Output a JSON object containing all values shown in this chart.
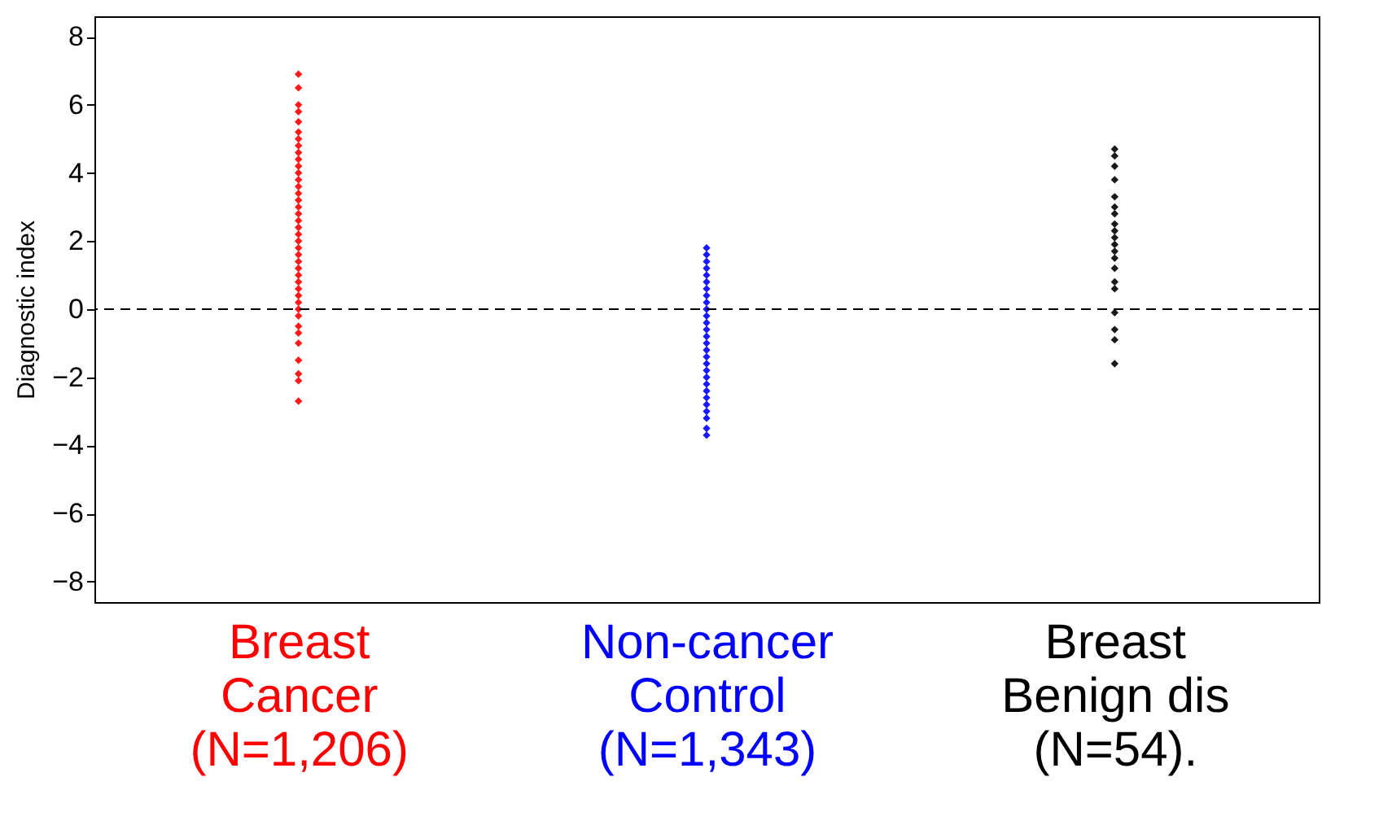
{
  "chart_data": {
    "type": "scatter",
    "ylabel": "Diagnostic index",
    "categories": [
      "Breast\nCancer\n(N=1,206)",
      "Non-cancer\nControl\n(N=1,343)",
      "Breast\nBenign dis\n(N=54)."
    ],
    "series": [
      {
        "color": "#ff0000",
        "x": [
          "Breast\nCancer\n(N=1,206)",
          "Breast\nCancer\n(N=1,206)",
          "Breast\nCancer\n(N=1,206)",
          "Breast\nCancer\n(N=1,206)",
          "Breast\nCancer\n(N=1,206)",
          "Breast\nCancer\n(N=1,206)",
          "Breast\nCancer\n(N=1,206)",
          "Breast\nCancer\n(N=1,206)",
          "Breast\nCancer\n(N=1,206)",
          "Breast\nCancer\n(N=1,206)",
          "Breast\nCancer\n(N=1,206)",
          "Breast\nCancer\n(N=1,206)",
          "Breast\nCancer\n(N=1,206)",
          "Breast\nCancer\n(N=1,206)",
          "Breast\nCancer\n(N=1,206)",
          "Breast\nCancer\n(N=1,206)",
          "Breast\nCancer\n(N=1,206)",
          "Breast\nCancer\n(N=1,206)",
          "Breast\nCancer\n(N=1,206)",
          "Breast\nCancer\n(N=1,206)",
          "Breast\nCancer\n(N=1,206)",
          "Breast\nCancer\n(N=1,206)",
          "Breast\nCancer\n(N=1,206)",
          "Breast\nCancer\n(N=1,206)",
          "Breast\nCancer\n(N=1,206)",
          "Breast\nCancer\n(N=1,206)",
          "Breast\nCancer\n(N=1,206)",
          "Breast\nCancer\n(N=1,206)",
          "Breast\nCancer\n(N=1,206)",
          "Breast\nCancer\n(N=1,206)",
          "Breast\nCancer\n(N=1,206)",
          "Breast\nCancer\n(N=1,206)",
          "Breast\nCancer\n(N=1,206)",
          "Breast\nCancer\n(N=1,206)",
          "Breast\nCancer\n(N=1,206)",
          "Breast\nCancer\n(N=1,206)",
          "Breast\nCancer\n(N=1,206)",
          "Breast\nCancer\n(N=1,206)",
          "Breast\nCancer\n(N=1,206)",
          "Breast\nCancer\n(N=1,206)"
        ],
        "values": [
          6.9,
          6.5,
          6.0,
          5.8,
          5.5,
          5.2,
          5.0,
          4.8,
          4.6,
          4.4,
          4.2,
          4.0,
          3.8,
          3.6,
          3.4,
          3.2,
          3.0,
          2.8,
          2.6,
          2.4,
          2.2,
          2.0,
          1.8,
          1.6,
          1.4,
          1.2,
          1.0,
          0.8,
          0.6,
          0.4,
          0.2,
          0.0,
          -0.2,
          -0.5,
          -0.7,
          -1.0,
          -1.5,
          -1.9,
          -2.1,
          -2.7
        ]
      },
      {
        "color": "#0000ff",
        "x": [
          "Non-cancer\nControl\n(N=1,343)",
          "Non-cancer\nControl\n(N=1,343)",
          "Non-cancer\nControl\n(N=1,343)",
          "Non-cancer\nControl\n(N=1,343)",
          "Non-cancer\nControl\n(N=1,343)",
          "Non-cancer\nControl\n(N=1,343)",
          "Non-cancer\nControl\n(N=1,343)",
          "Non-cancer\nControl\n(N=1,343)",
          "Non-cancer\nControl\n(N=1,343)",
          "Non-cancer\nControl\n(N=1,343)",
          "Non-cancer\nControl\n(N=1,343)",
          "Non-cancer\nControl\n(N=1,343)",
          "Non-cancer\nControl\n(N=1,343)",
          "Non-cancer\nControl\n(N=1,343)",
          "Non-cancer\nControl\n(N=1,343)",
          "Non-cancer\nControl\n(N=1,343)",
          "Non-cancer\nControl\n(N=1,343)",
          "Non-cancer\nControl\n(N=1,343)",
          "Non-cancer\nControl\n(N=1,343)",
          "Non-cancer\nControl\n(N=1,343)",
          "Non-cancer\nControl\n(N=1,343)",
          "Non-cancer\nControl\n(N=1,343)",
          "Non-cancer\nControl\n(N=1,343)",
          "Non-cancer\nControl\n(N=1,343)",
          "Non-cancer\nControl\n(N=1,343)",
          "Non-cancer\nControl\n(N=1,343)",
          "Non-cancer\nControl\n(N=1,343)",
          "Non-cancer\nControl\n(N=1,343)"
        ],
        "values": [
          1.8,
          1.6,
          1.4,
          1.2,
          1.0,
          0.8,
          0.6,
          0.4,
          0.2,
          0.0,
          -0.2,
          -0.4,
          -0.6,
          -0.8,
          -1.0,
          -1.2,
          -1.4,
          -1.6,
          -1.8,
          -2.0,
          -2.2,
          -2.4,
          -2.6,
          -2.8,
          -3.0,
          -3.2,
          -3.5,
          -3.7
        ]
      },
      {
        "color": "#000000",
        "x": [
          "Breast\nBenign dis\n(N=54).",
          "Breast\nBenign dis\n(N=54).",
          "Breast\nBenign dis\n(N=54).",
          "Breast\nBenign dis\n(N=54).",
          "Breast\nBenign dis\n(N=54).",
          "Breast\nBenign dis\n(N=54).",
          "Breast\nBenign dis\n(N=54).",
          "Breast\nBenign dis\n(N=54).",
          "Breast\nBenign dis\n(N=54).",
          "Breast\nBenign dis\n(N=54).",
          "Breast\nBenign dis\n(N=54).",
          "Breast\nBenign dis\n(N=54).",
          "Breast\nBenign dis\n(N=54).",
          "Breast\nBenign dis\n(N=54).",
          "Breast\nBenign dis\n(N=54).",
          "Breast\nBenign dis\n(N=54).",
          "Breast\nBenign dis\n(N=54).",
          "Breast\nBenign dis\n(N=54).",
          "Breast\nBenign dis\n(N=54).",
          "Breast\nBenign dis\n(N=54)."
        ],
        "values": [
          4.7,
          4.5,
          4.2,
          3.8,
          3.3,
          3.0,
          2.8,
          2.5,
          2.3,
          2.1,
          1.9,
          1.7,
          1.5,
          1.2,
          0.8,
          0.6,
          -0.1,
          -0.6,
          -0.9,
          -1.6
        ]
      }
    ],
    "ylim": [
      -8.6,
      8.6
    ],
    "yticks": [
      -8,
      -6,
      -4,
      -2,
      0,
      2,
      4,
      6,
      8
    ],
    "grid": false,
    "marker": "diamond",
    "ref_lines": [
      {
        "axis": "y",
        "value": 0,
        "color": "#000000",
        "line_style": "dashed"
      }
    ]
  }
}
